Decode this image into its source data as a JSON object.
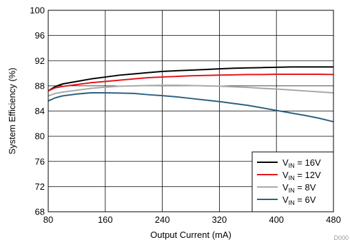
{
  "chart_data": {
    "type": "line",
    "xlabel": "Output Current (mA)",
    "ylabel": "System Efficiency (%)",
    "xlim": [
      80,
      480
    ],
    "ylim": [
      68,
      100
    ],
    "xticks": [
      80,
      160,
      240,
      320,
      400,
      480
    ],
    "yticks": [
      68,
      72,
      76,
      80,
      84,
      88,
      92,
      96,
      100
    ],
    "grid": true,
    "legend_position": "bottom-right",
    "series": [
      {
        "name_main": "V",
        "name_sub": "IN",
        "name_suffix": " = 16V",
        "color": "#000000",
        "x": [
          80,
          90,
          100,
          120,
          140,
          160,
          180,
          200,
          220,
          240,
          260,
          280,
          300,
          320,
          340,
          360,
          380,
          400,
          420,
          440,
          460,
          480
        ],
        "y": [
          87.2,
          87.9,
          88.3,
          88.7,
          89.1,
          89.4,
          89.7,
          89.9,
          90.1,
          90.3,
          90.4,
          90.5,
          90.6,
          90.7,
          90.8,
          90.85,
          90.9,
          90.95,
          91.0,
          91.0,
          91.0,
          91.0
        ]
      },
      {
        "name_main": "V",
        "name_sub": "IN",
        "name_suffix": " = 12V",
        "color": "#e4141b",
        "x": [
          80,
          90,
          100,
          120,
          140,
          160,
          180,
          200,
          220,
          240,
          260,
          280,
          300,
          320,
          340,
          360,
          380,
          400,
          420,
          440,
          460,
          480
        ],
        "y": [
          87.2,
          87.7,
          87.9,
          88.2,
          88.5,
          88.7,
          88.9,
          89.1,
          89.3,
          89.4,
          89.5,
          89.6,
          89.65,
          89.7,
          89.75,
          89.8,
          89.8,
          89.85,
          89.85,
          89.85,
          89.85,
          89.8
        ]
      },
      {
        "name_main": "V",
        "name_sub": "IN",
        "name_suffix": " = 8V",
        "color": "#a8a8a8",
        "x": [
          80,
          90,
          100,
          120,
          140,
          160,
          180,
          200,
          220,
          240,
          260,
          280,
          300,
          320,
          340,
          360,
          380,
          400,
          420,
          440,
          460,
          480
        ],
        "y": [
          86.4,
          86.8,
          87.0,
          87.3,
          87.6,
          87.8,
          87.95,
          88.0,
          88.05,
          88.1,
          88.1,
          88.05,
          88.0,
          87.95,
          87.85,
          87.75,
          87.6,
          87.5,
          87.35,
          87.2,
          87.05,
          86.9
        ]
      },
      {
        "name_main": "V",
        "name_sub": "IN",
        "name_suffix": " = 6V",
        "color": "#2a6080",
        "x": [
          80,
          90,
          100,
          120,
          140,
          160,
          180,
          200,
          220,
          240,
          260,
          280,
          300,
          320,
          340,
          360,
          380,
          400,
          420,
          440,
          460,
          480
        ],
        "y": [
          85.6,
          86.1,
          86.4,
          86.7,
          86.9,
          86.9,
          86.85,
          86.8,
          86.6,
          86.45,
          86.25,
          86.0,
          85.75,
          85.5,
          85.2,
          84.9,
          84.5,
          84.1,
          83.7,
          83.3,
          82.85,
          82.3
        ]
      }
    ],
    "footnote": "D000"
  }
}
